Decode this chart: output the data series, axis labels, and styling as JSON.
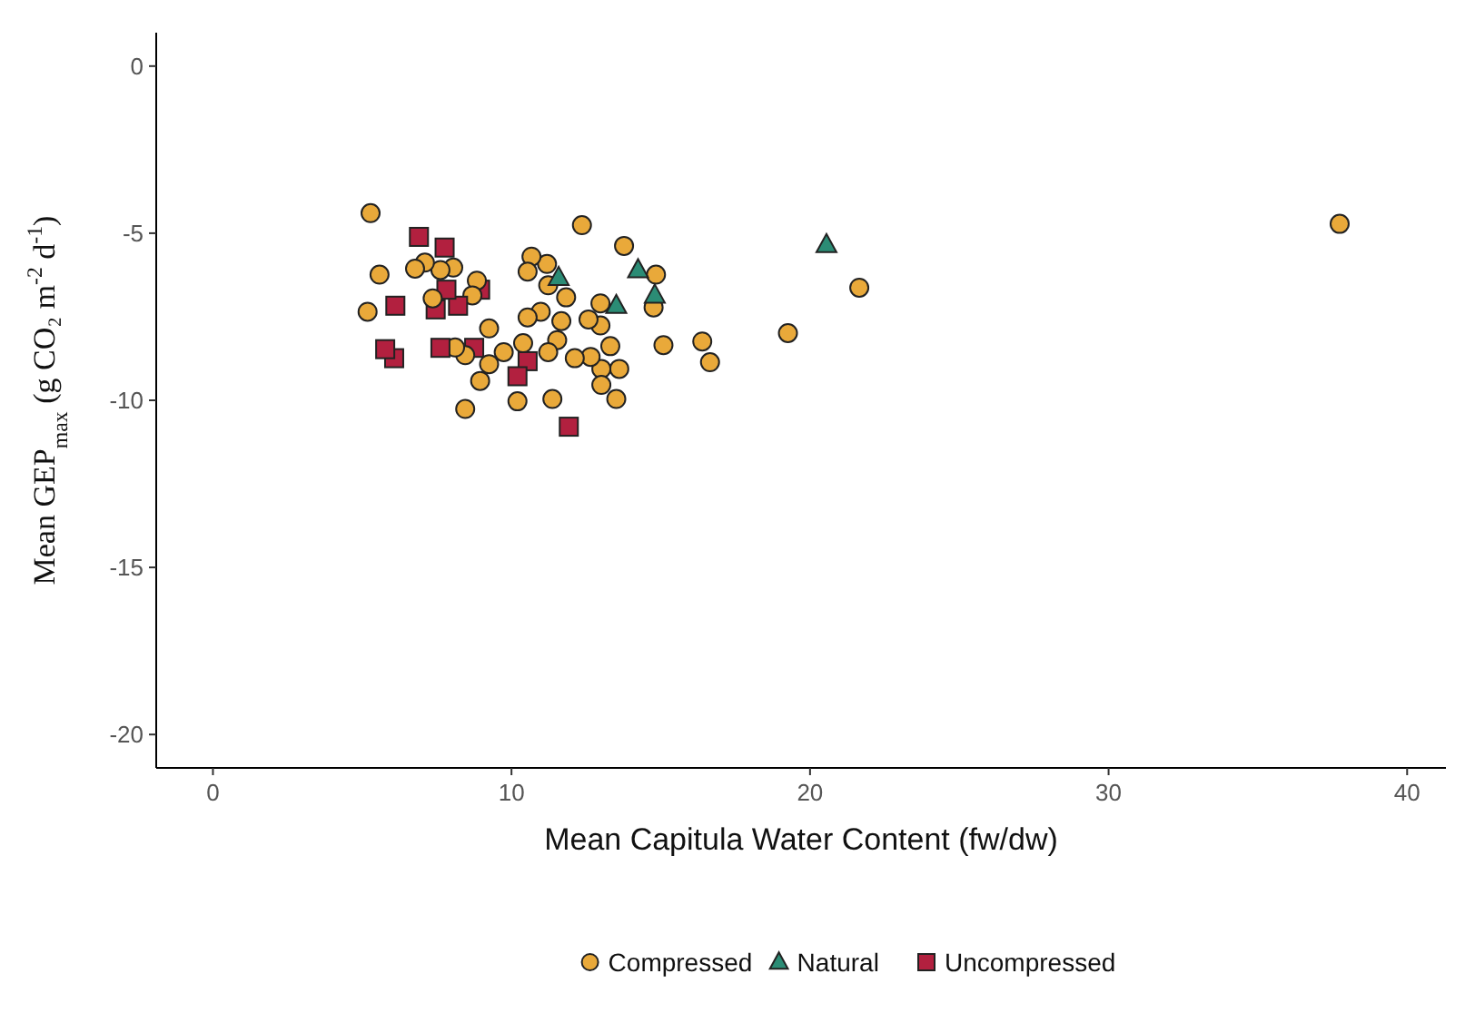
{
  "chart_data": {
    "type": "scatter",
    "xlabel": "Mean Capitula Water Content (fw/dw)",
    "ylabel": "Mean GEP$_{max}$ (g CO₂ m$^{-2}$ d$^{-1}$)",
    "xlim": [
      -1.9,
      41.3
    ],
    "ylim": [
      -21,
      1
    ],
    "xticks": [
      0,
      10,
      20,
      30,
      40
    ],
    "yticks": [
      0,
      -5,
      -10,
      -15,
      -20
    ],
    "grid": false,
    "legend": "bottom",
    "series": [
      {
        "name": "Compressed",
        "color": "#e9a93a",
        "marker": "circle",
        "x": [
          5.28,
          12.36,
          13.77,
          5.58,
          6.77,
          7.1,
          7.62,
          8.05,
          8.84,
          10.67,
          11.19,
          10.54,
          11.23,
          11.83,
          14.84,
          14.76,
          5.18,
          7.36,
          8.69,
          10.54,
          10.98,
          11.67,
          12.58,
          12.98,
          9.25,
          11.53,
          11.23,
          15.09,
          13.31,
          16.39,
          16.65,
          8.11,
          8.45,
          9.25,
          10.39,
          9.74,
          12.12,
          12.65,
          13.01,
          13.61,
          8.95,
          13.01,
          13.51,
          10.2,
          11.37,
          8.45,
          19.26,
          21.65,
          12.98,
          37.74
        ],
        "values": [
          -4.4,
          -4.76,
          -5.38,
          -6.24,
          -6.06,
          -5.88,
          -6.1,
          -6.03,
          -6.42,
          -5.7,
          -5.92,
          -6.15,
          -6.56,
          -6.92,
          -6.24,
          -7.22,
          -7.35,
          -6.95,
          -6.86,
          -7.52,
          -7.35,
          -7.63,
          -7.58,
          -7.76,
          -7.85,
          -8.2,
          -8.56,
          -8.35,
          -8.38,
          -8.24,
          -8.86,
          -8.42,
          -8.65,
          -8.92,
          -8.29,
          -8.56,
          -8.74,
          -8.7,
          -9.06,
          -9.06,
          -9.42,
          -9.54,
          -9.96,
          -10.03,
          -9.96,
          -10.26,
          -7.99,
          -6.63,
          -7.1,
          -4.72
        ]
      },
      {
        "name": "Natural",
        "color": "#2b8c75",
        "marker": "triangle",
        "x": [
          11.58,
          14.24,
          13.51,
          14.8,
          20.55
        ],
        "values": [
          -6.33,
          -6.1,
          -7.17,
          -6.86,
          -5.35
        ]
      },
      {
        "name": "Uncompressed",
        "color": "#b2203f",
        "marker": "square",
        "x": [
          6.9,
          7.76,
          7.82,
          6.11,
          7.46,
          8.21,
          8.95,
          5.77,
          6.07,
          7.62,
          8.75,
          10.54,
          10.2,
          11.92
        ],
        "values": [
          -5.11,
          -5.43,
          -6.69,
          -7.17,
          -7.28,
          -7.17,
          -6.69,
          -8.47,
          -8.74,
          -8.43,
          -8.43,
          -8.83,
          -9.28,
          -10.79
        ]
      }
    ]
  }
}
